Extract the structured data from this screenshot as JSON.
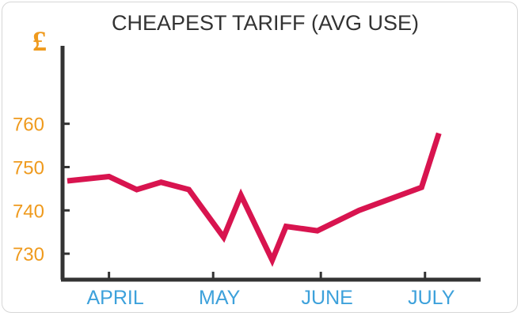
{
  "chart_data": {
    "type": "line",
    "title": "CHEAPEST TARIFF (AVG USE)",
    "y_unit_symbol": "£",
    "xlabel": "",
    "ylabel": "",
    "ylim": [
      724,
      778
    ],
    "yticks": [
      730,
      740,
      750,
      760
    ],
    "xticks": [
      {
        "label": "APRIL",
        "day": 1
      },
      {
        "label": "MAY",
        "day": 31
      },
      {
        "label": "JUNE",
        "day": 62
      },
      {
        "label": "JULY",
        "day": 92
      }
    ],
    "xlim": [
      -11,
      103
    ],
    "grid": false,
    "legend": "none",
    "series": [
      {
        "x": [
          -11,
          1,
          9,
          16,
          24,
          34,
          39,
          48,
          52,
          61,
          73,
          91,
          96
        ],
        "values": [
          746.8,
          747.8,
          744.8,
          746.5,
          744.8,
          733.8,
          743.5,
          728.5,
          736.3,
          735.3,
          740.0,
          745.3,
          757.8
        ]
      }
    ],
    "colors": {
      "line": "#d8144f",
      "y_tick_text": "#ef9a1d",
      "x_tick_text": "#3da1db",
      "unit_symbol": "#ef9a1d",
      "axis": "#333333",
      "title": "#333333"
    }
  }
}
